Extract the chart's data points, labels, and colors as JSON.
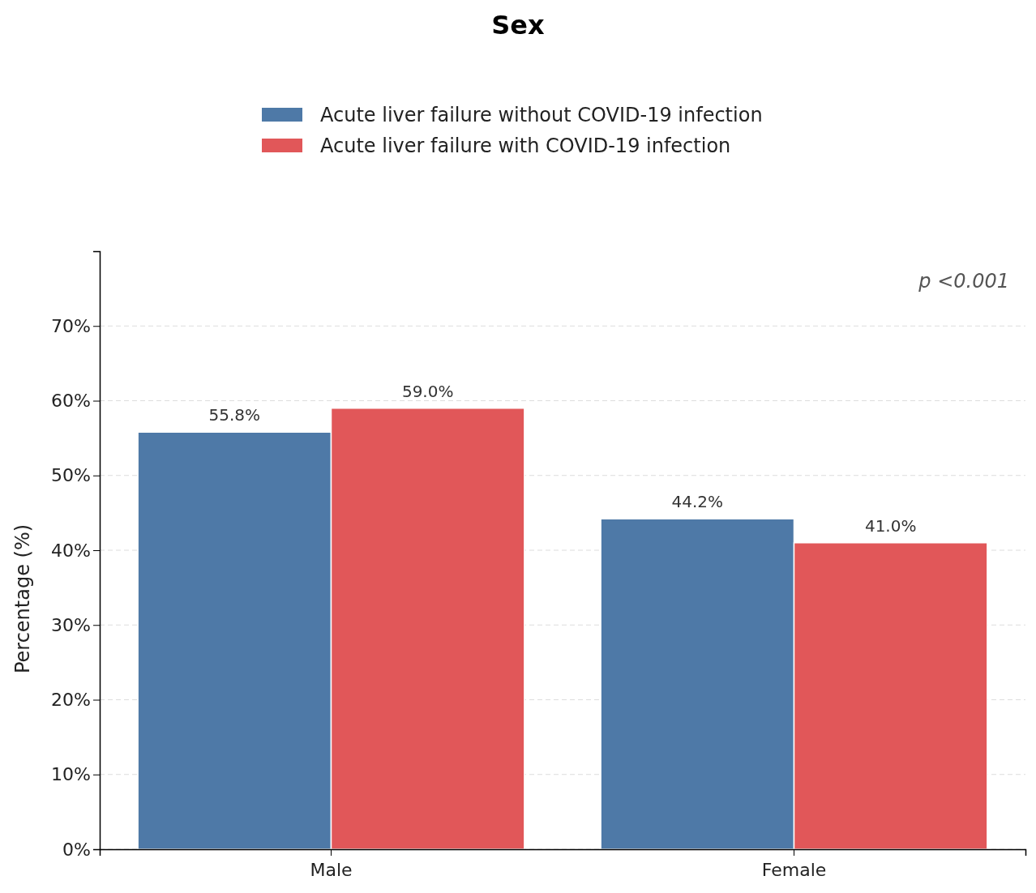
{
  "chart_data": {
    "type": "bar",
    "title": "Sex",
    "ylabel": "Percentage (%)",
    "categories": [
      "Male",
      "Female"
    ],
    "series": [
      {
        "name": "Acute liver failure without COVID-19 infection",
        "color": "#4e79a7",
        "values": [
          55.8,
          44.2
        ],
        "value_labels": [
          "55.8%",
          "44.2%"
        ]
      },
      {
        "name": "Acute liver failure with COVID-19 infection",
        "color": "#e15759",
        "values": [
          59.0,
          41.0
        ],
        "value_labels": [
          "59.0%",
          "41.0%"
        ]
      }
    ],
    "ylim": [
      0,
      80
    ],
    "yticks": [
      {
        "value": 0,
        "label": "0%"
      },
      {
        "value": 10,
        "label": "10%"
      },
      {
        "value": 20,
        "label": "20%"
      },
      {
        "value": 30,
        "label": "30%"
      },
      {
        "value": 40,
        "label": "40%"
      },
      {
        "value": 50,
        "label": "50%"
      },
      {
        "value": 60,
        "label": "60%"
      },
      {
        "value": 70,
        "label": "70%"
      }
    ],
    "grid": "y",
    "legend": "top",
    "annotations": [
      "p <0.001"
    ]
  }
}
